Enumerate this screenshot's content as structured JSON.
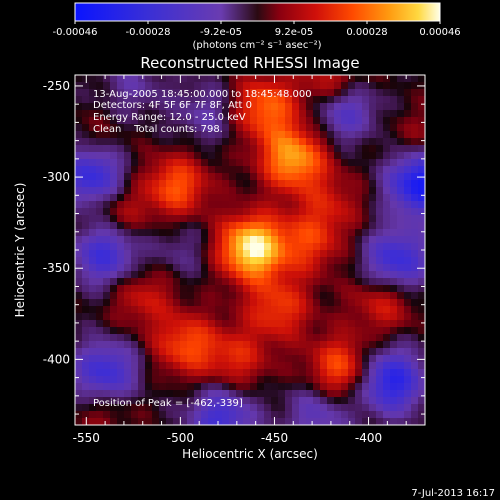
{
  "chart_data": {
    "type": "heatmap",
    "title": "Reconstructed RHESSI Image",
    "xlabel": "Heliocentric X (arcsec)",
    "ylabel": "Heliocentric Y (arcsec)",
    "xlim": [
      -556,
      -370
    ],
    "ylim": [
      -436,
      -244
    ],
    "x_ticks": [
      -550,
      -500,
      -450,
      -400
    ],
    "y_ticks": [
      -250,
      -300,
      -350,
      -400
    ],
    "colorbar": {
      "ticks": [
        "-0.00046",
        "-0.00028",
        "-9.2e-05",
        "9.2e-05",
        "0.00028",
        "0.00046"
      ],
      "units_label": "(photons cm⁻² s⁻¹ asec⁻²)",
      "min": -0.00046,
      "max": 0.00046
    },
    "annotations": {
      "time_range": "13-Aug-2005 18:45:00.000 to 18:45:48.000",
      "detectors": "Detectors: 4F 5F 6F 7F 8F, Att 0",
      "energy": "Energy Range: 12.0 - 25.0 keV",
      "clean": "Clean    Total counts: 798.",
      "peak": "Position of Peak = [-462,-339]"
    },
    "peak": {
      "x": -462,
      "y": -339,
      "value": 0.00046
    },
    "features": [
      {
        "x": -462,
        "y": -339,
        "value": 0.00046
      },
      {
        "x": -440,
        "y": -290,
        "value": 0.00034
      },
      {
        "x": -455,
        "y": -262,
        "value": 0.00026
      },
      {
        "x": -418,
        "y": -250,
        "value": 0.0002
      },
      {
        "x": -502,
        "y": -305,
        "value": 0.00024
      },
      {
        "x": -533,
        "y": -320,
        "value": 0.00012
      },
      {
        "x": -520,
        "y": -365,
        "value": 0.00014
      },
      {
        "x": -497,
        "y": -392,
        "value": 0.00022
      },
      {
        "x": -470,
        "y": -400,
        "value": 0.00016
      },
      {
        "x": -448,
        "y": -372,
        "value": 0.0002
      },
      {
        "x": -415,
        "y": -405,
        "value": 0.00024
      },
      {
        "x": -392,
        "y": -368,
        "value": 0.00016
      },
      {
        "x": -432,
        "y": -336,
        "value": 0.00018
      },
      {
        "x": -420,
        "y": -315,
        "value": 0.00012
      },
      {
        "x": -545,
        "y": -285,
        "value": 0.0001
      },
      {
        "x": -375,
        "y": -280,
        "value": 8e-05
      },
      {
        "x": -540,
        "y": -425,
        "value": 0.0001
      },
      {
        "x": -547,
        "y": -298,
        "value": -0.00035
      },
      {
        "x": -540,
        "y": -342,
        "value": -0.00028
      },
      {
        "x": -540,
        "y": -408,
        "value": -0.0003
      },
      {
        "x": -478,
        "y": -432,
        "value": -0.00026
      },
      {
        "x": -413,
        "y": -262,
        "value": -0.00026
      },
      {
        "x": -372,
        "y": -303,
        "value": -0.00042
      },
      {
        "x": -385,
        "y": -346,
        "value": -0.0003
      },
      {
        "x": -388,
        "y": -412,
        "value": -0.00035
      },
      {
        "x": -486,
        "y": -265,
        "value": -0.00012
      },
      {
        "x": -427,
        "y": -430,
        "value": -0.00016
      },
      {
        "x": -500,
        "y": -340,
        "value": -8e-05
      },
      {
        "x": -525,
        "y": -250,
        "value": -0.0001
      }
    ]
  },
  "footer": {
    "timestamp": "7-Jul-2013 16:17"
  },
  "colors": {
    "background": "#000000",
    "text": "#ffffff"
  }
}
